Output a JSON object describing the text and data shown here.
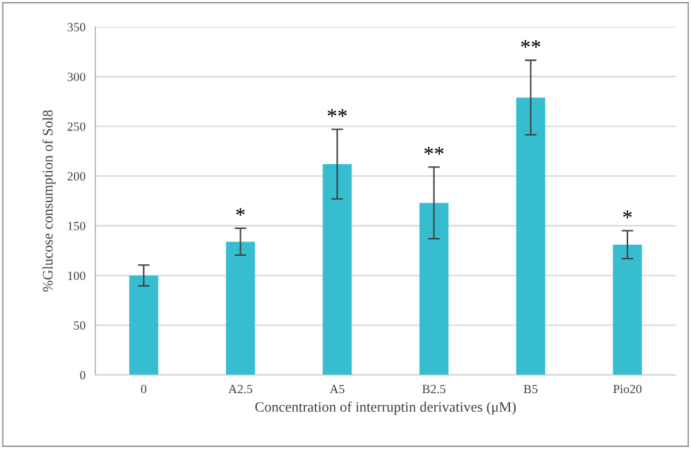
{
  "chart_data": {
    "type": "bar",
    "ylabel": "%Glucose consumption of Sol8",
    "xlabel": "Concentration of interruptin derivatives (μM)",
    "categories": [
      "0",
      "A2.5",
      "A5",
      "B2.5",
      "B5",
      "Pio20"
    ],
    "values": [
      100,
      134,
      212,
      173,
      279,
      131
    ],
    "errors": [
      10.5,
      13.5,
      35,
      36,
      37.5,
      14
    ],
    "color": "#36bed0",
    "ylim": [
      0,
      350
    ],
    "yticks": [
      0,
      50,
      100,
      150,
      200,
      250,
      300,
      350
    ],
    "grid": "y",
    "annotations": [
      {
        "text": "*",
        "x": "A2.5",
        "y": 147.5
      },
      {
        "text": "**",
        "x": "A5",
        "y": 247
      },
      {
        "text": "**",
        "x": "B2.5",
        "y": 209
      },
      {
        "text": "**",
        "x": "B5",
        "y": 316.5
      },
      {
        "text": "*",
        "x": "Pio20",
        "y": 145
      }
    ]
  }
}
